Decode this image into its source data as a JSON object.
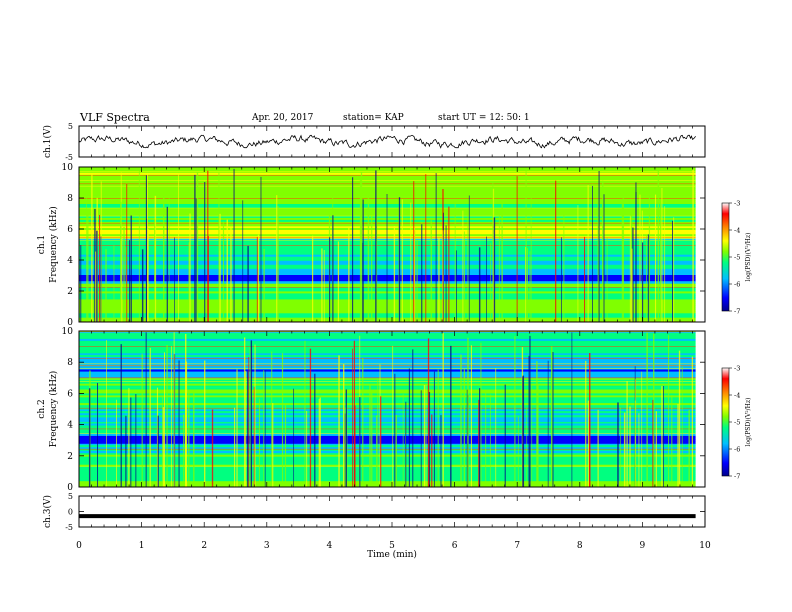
{
  "header": {
    "title": "VLF Spectra",
    "date": "Apr. 20, 2017",
    "station": "station= KAP",
    "start": "start  UT  =    12: 50: 1"
  },
  "colors": {
    "colormap": [
      "#00008b",
      "#0000ff",
      "#00bfff",
      "#00ff80",
      "#80ff00",
      "#ffff00",
      "#ff8000",
      "#ff0000",
      "#ffffff"
    ],
    "trace": "#000000"
  },
  "chart_data": [
    {
      "type": "line",
      "name": "ch1-waveform",
      "ylabel": "ch.1(V)",
      "ylim": [
        -5,
        5
      ],
      "yticks": [
        "5",
        "-5"
      ],
      "xlim": [
        0,
        10
      ],
      "description_of_values": "noisy waveform around ~0 V, amplitude about ±2 V",
      "values_summary": {
        "min": -2,
        "max": 2
      }
    },
    {
      "type": "heatmap",
      "name": "ch1-spectrogram",
      "ylabel": "ch.1\nFrequency (kHz)",
      "ylim": [
        0,
        10
      ],
      "yticks": [
        "0",
        "2",
        "4",
        "6",
        "8",
        "10"
      ],
      "xlim": [
        0,
        10
      ],
      "colorbar": {
        "label": "log(PSD)(V²/Hz)",
        "range": [
          -7,
          -3
        ],
        "ticks": [
          "-3",
          "-4",
          "-5",
          "-6",
          "-7"
        ]
      },
      "bands": [
        {
          "from": 0,
          "to": 0.7,
          "level": -5.0
        },
        {
          "from": 0.7,
          "to": 1.2,
          "level": -4.6
        },
        {
          "from": 1.2,
          "to": 2.1,
          "level": -5.2
        },
        {
          "from": 2.1,
          "to": 2.5,
          "level": -4.8
        },
        {
          "from": 2.5,
          "to": 3.3,
          "level": -6.2
        },
        {
          "from": 3.3,
          "to": 4.6,
          "level": -5.6
        },
        {
          "from": 4.6,
          "to": 5.4,
          "level": -5.3
        },
        {
          "from": 5.4,
          "to": 6.2,
          "level": -4.4
        },
        {
          "from": 6.2,
          "to": 8.0,
          "level": -4.9
        },
        {
          "from": 8.0,
          "to": 10,
          "level": -4.7
        }
      ]
    },
    {
      "type": "heatmap",
      "name": "ch2-spectrogram",
      "ylabel": "ch.2\nFrequency (kHz)",
      "ylim": [
        0,
        10
      ],
      "yticks": [
        "0",
        "2",
        "4",
        "6",
        "8",
        "10"
      ],
      "xlim": [
        0,
        10
      ],
      "colorbar": {
        "label": "log(PSD)(V²/Hz)",
        "range": [
          -7,
          -3
        ],
        "ticks": [
          "-3",
          "-4",
          "-5",
          "-6",
          "-7"
        ]
      },
      "bands": [
        {
          "from": 0,
          "to": 0.4,
          "level": -4.8
        },
        {
          "from": 0.4,
          "to": 2.2,
          "level": -5.2
        },
        {
          "from": 2.2,
          "to": 2.8,
          "level": -5.6
        },
        {
          "from": 2.8,
          "to": 3.3,
          "level": -6.4
        },
        {
          "from": 3.3,
          "to": 4.2,
          "level": -5.4
        },
        {
          "from": 4.2,
          "to": 5.0,
          "level": -5.6
        },
        {
          "from": 5.0,
          "to": 7.0,
          "level": -5.1
        },
        {
          "from": 7.0,
          "to": 8.6,
          "level": -5.9
        },
        {
          "from": 8.6,
          "to": 10,
          "level": -5.5
        }
      ]
    },
    {
      "type": "line",
      "name": "ch3-waveform",
      "ylabel": "ch.3(V)",
      "ylim": [
        -5,
        5
      ],
      "yticks": [
        "5",
        "0",
        "-5"
      ],
      "xlim": [
        0,
        10
      ],
      "values_summary": {
        "constant": -1.5
      }
    }
  ],
  "xaxis": {
    "label": "Time (min)",
    "ticks": [
      "0",
      "1",
      "2",
      "3",
      "4",
      "5",
      "6",
      "7",
      "8",
      "9",
      "10"
    ]
  }
}
